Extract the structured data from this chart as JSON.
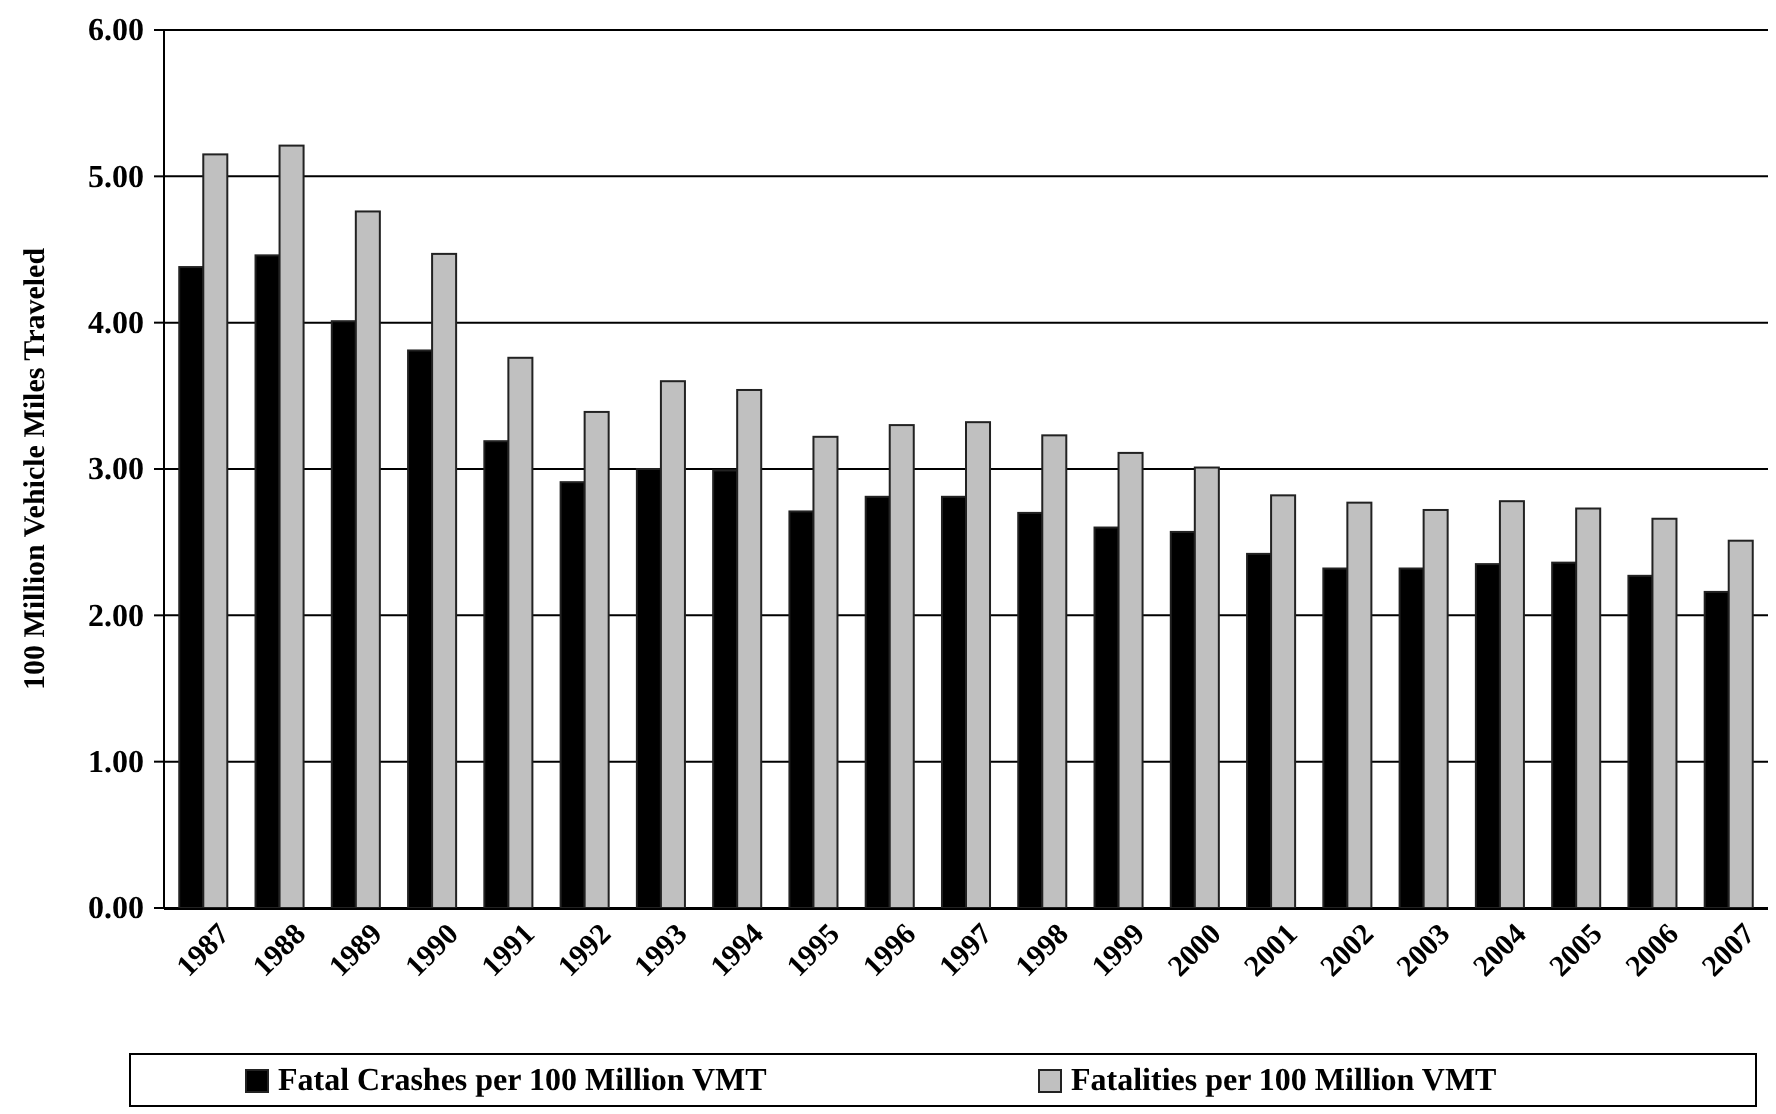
{
  "chart_data": {
    "type": "bar",
    "ylabel": "100 Million Vehicle Miles Traveled",
    "categories": [
      "1987",
      "1988",
      "1989",
      "1990",
      "1991",
      "1992",
      "1993",
      "1994",
      "1995",
      "1996",
      "1997",
      "1998",
      "1999",
      "2000",
      "2001",
      "2002",
      "2003",
      "2004",
      "2005",
      "2006",
      "2007"
    ],
    "series": [
      {
        "name": "Fatal Crashes per 100 Million VMT",
        "color": "#000000",
        "values": [
          4.38,
          4.46,
          4.01,
          3.81,
          3.19,
          2.91,
          3.0,
          2.99,
          2.71,
          2.81,
          2.81,
          2.7,
          2.6,
          2.57,
          2.42,
          2.32,
          2.32,
          2.35,
          2.36,
          2.27,
          2.16
        ]
      },
      {
        "name": "Fatalities per 100 Million VMT",
        "color": "#c0c0c0",
        "values": [
          5.15,
          5.21,
          4.76,
          4.47,
          3.76,
          3.39,
          3.6,
          3.54,
          3.22,
          3.3,
          3.32,
          3.23,
          3.11,
          3.01,
          2.82,
          2.77,
          2.72,
          2.78,
          2.73,
          2.66,
          2.51
        ]
      }
    ],
    "ylim": [
      0,
      6
    ],
    "yticks": [
      {
        "value": 0,
        "label": "0.00"
      },
      {
        "value": 1,
        "label": "1.00"
      },
      {
        "value": 2,
        "label": "2.00"
      },
      {
        "value": 3,
        "label": "3.00"
      },
      {
        "value": 4,
        "label": "4.00"
      },
      {
        "value": 5,
        "label": "5.00"
      },
      {
        "value": 6,
        "label": "6.00"
      }
    ],
    "grid": "y",
    "legend": "bottom"
  }
}
